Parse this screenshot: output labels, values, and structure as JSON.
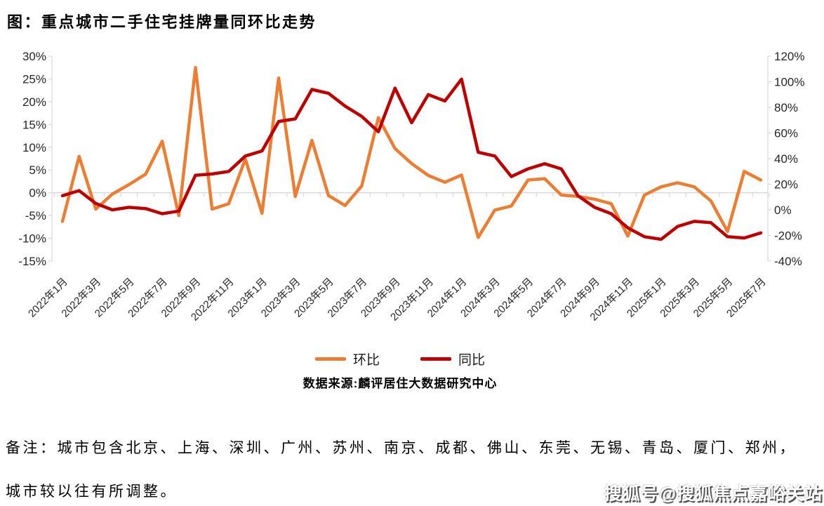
{
  "title": "图：重点城市二手住宅挂牌量同环比走势",
  "legend": {
    "items": [
      {
        "label": "环比",
        "color": "#ED7D31"
      },
      {
        "label": "同比",
        "color": "#C00000"
      }
    ]
  },
  "source": "数据来源:麟评居住大数据研究中心",
  "note": {
    "line1": "备注：城市包含北京、上海、深圳、广州、苏州、南京、成都、佛山、东莞、无锡、青岛、厦门、郑州，",
    "line2": "城市较以往有所调整。"
  },
  "watermark": "搜狐号@搜狐焦点嘉峪关站",
  "colors": {
    "mom_line": "#ED7D31",
    "yoy_line": "#C00000",
    "gridline": "#D9D9D9",
    "axis_text": "#262626"
  },
  "chart_data": {
    "type": "line",
    "title": "重点城市二手住宅挂牌量同环比走势",
    "grid": "zero-line-only",
    "legend_position": "bottom",
    "categories": [
      "2022年1月",
      "2022年2月",
      "2022年3月",
      "2022年4月",
      "2022年5月",
      "2022年6月",
      "2022年7月",
      "2022年8月",
      "2022年9月",
      "2022年10月",
      "2022年11月",
      "2022年12月",
      "2023年1月",
      "2023年2月",
      "2023年3月",
      "2023年4月",
      "2023年5月",
      "2023年6月",
      "2023年7月",
      "2023年8月",
      "2023年9月",
      "2023年10月",
      "2023年11月",
      "2023年12月",
      "2024年1月",
      "2024年2月",
      "2024年3月",
      "2024年4月",
      "2024年5月",
      "2024年6月",
      "2024年7月",
      "2024年8月",
      "2024年9月",
      "2024年10月",
      "2024年11月",
      "2024年12月",
      "2025年1月",
      "2025年2月",
      "2025年3月",
      "2025年4月",
      "2025年5月",
      "2025年6月",
      "2025年7月"
    ],
    "x_labels_shown_every": 2,
    "series": [
      {
        "name": "环比",
        "axis": "left",
        "color": "#ED7D31",
        "values": [
          -6.3,
          8.0,
          -3.6,
          -0.3,
          1.8,
          4.1,
          11.3,
          -5.0,
          27.5,
          -3.6,
          -2.4,
          7.4,
          -4.5,
          25.2,
          -0.8,
          11.5,
          -0.6,
          -2.8,
          1.5,
          16.5,
          9.7,
          6.4,
          3.8,
          2.3,
          3.9,
          -9.8,
          -3.8,
          -2.9,
          2.8,
          3.1,
          -0.5,
          -0.8,
          -1.4,
          -2.4,
          -9.5,
          -0.5,
          1.3,
          2.2,
          1.3,
          -1.8,
          -8.5,
          4.7,
          2.8
        ]
      },
      {
        "name": "同比",
        "axis": "right",
        "color": "#C00000",
        "values": [
          11,
          15,
          5,
          0,
          2,
          1,
          -3,
          -1,
          27,
          28,
          30,
          42,
          46,
          69,
          71,
          94,
          91,
          81,
          73,
          61,
          95,
          68,
          90,
          85,
          102,
          45,
          42,
          26,
          32,
          36,
          32,
          11,
          2,
          -3,
          -14,
          -21,
          -23,
          -13,
          -9,
          -10,
          -21,
          -22,
          -18
        ]
      }
    ],
    "left_axis": {
      "min": -15,
      "max": 30,
      "step": 5,
      "unit": "%",
      "tick_labels": [
        "30%",
        "25%",
        "20%",
        "15%",
        "10%",
        "5%",
        "0%",
        "-5%",
        "-10%",
        "-15%"
      ]
    },
    "right_axis": {
      "min": -40,
      "max": 120,
      "step": 20,
      "unit": "%",
      "tick_labels": [
        "120%",
        "100%",
        "80%",
        "60%",
        "40%",
        "20%",
        "0%",
        "-20%",
        "-40%"
      ]
    }
  }
}
